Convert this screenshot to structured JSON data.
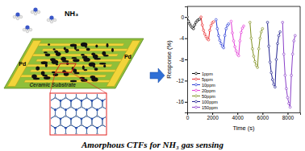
{
  "diagram": {
    "molecule_label": "NH₃",
    "electrode_labels": [
      "Pd",
      "Pd"
    ],
    "substrate_label": "Ceramic Substrate",
    "caption": "Amorphous CTFs for NH₃ gas sensing"
  },
  "chart_data": {
    "type": "line",
    "x_label": "Time (s)",
    "y_label": "Response (%)",
    "xlim": [
      0,
      9000
    ],
    "xticks": [
      0,
      2000,
      4000,
      6000,
      8000
    ],
    "ylim": [
      -18,
      2
    ],
    "yticks": [
      -16,
      -12,
      -8,
      -4,
      0
    ],
    "grid": false,
    "legend": "lower left",
    "marker": "circle",
    "series": [
      {
        "name": "1ppm",
        "color": "#000000",
        "x": [
          0,
          100,
          200,
          300,
          400,
          500,
          600,
          700,
          800,
          900,
          1000
        ],
        "values": [
          0,
          -0.8,
          -1.3,
          -1.7,
          -2.0,
          -2.2,
          -1.5,
          -1.0,
          -0.7,
          -0.5,
          -0.4
        ]
      },
      {
        "name": "5ppm",
        "color": "#e8262a",
        "x": [
          1100,
          1200,
          1300,
          1400,
          1500,
          1600,
          1700,
          1800,
          1900,
          2000,
          2100
        ],
        "values": [
          0,
          -1.5,
          -2.5,
          -3.2,
          -3.7,
          -4.1,
          -4.3,
          -2.5,
          -1.6,
          -1.1,
          -0.9
        ]
      },
      {
        "name": "10ppm",
        "color": "#2a3bd6",
        "x": [
          2300,
          2400,
          2500,
          2600,
          2700,
          2800,
          2900,
          3000,
          3100,
          3200,
          3300
        ],
        "values": [
          -0.5,
          -2.2,
          -3.5,
          -4.4,
          -5.0,
          -5.5,
          -5.8,
          -3.5,
          -2.2,
          -1.6,
          -1.3
        ]
      },
      {
        "name": "20ppm",
        "color": "#e23ad6",
        "x": [
          3500,
          3600,
          3700,
          3800,
          3900,
          4000,
          4100,
          4200,
          4300,
          4400,
          4500
        ],
        "values": [
          -0.8,
          -3.0,
          -4.5,
          -5.6,
          -6.4,
          -7.0,
          -7.3,
          -4.5,
          -2.9,
          -2.1,
          -1.7
        ]
      },
      {
        "name": "50ppm",
        "color": "#7f8f1f",
        "x": [
          5000,
          5100,
          5200,
          5300,
          5400,
          5500,
          5600,
          5700,
          5800,
          5900,
          6000
        ],
        "values": [
          -1,
          -4,
          -6,
          -7.4,
          -8.4,
          -9.1,
          -9.5,
          -6,
          -4,
          -2.8,
          -2.2
        ]
      },
      {
        "name": "100ppm",
        "color": "#1f1f8f",
        "x": [
          6400,
          6500,
          6600,
          6700,
          6800,
          6900,
          7000,
          7100,
          7200,
          7300,
          7400
        ],
        "values": [
          -1,
          -5.5,
          -8.5,
          -10.5,
          -11.8,
          -12.7,
          -13.2,
          -8,
          -5,
          -3.5,
          -2.8
        ]
      },
      {
        "name": "150ppm",
        "color": "#8a3fc9",
        "x": [
          7600,
          7700,
          7800,
          7900,
          8000,
          8100,
          8200,
          8300,
          8400,
          8500,
          8600
        ],
        "values": [
          -1,
          -7,
          -11,
          -13.5,
          -15.2,
          -16.3,
          -17,
          -11,
          -7,
          -4.5,
          -3.5
        ]
      }
    ]
  }
}
